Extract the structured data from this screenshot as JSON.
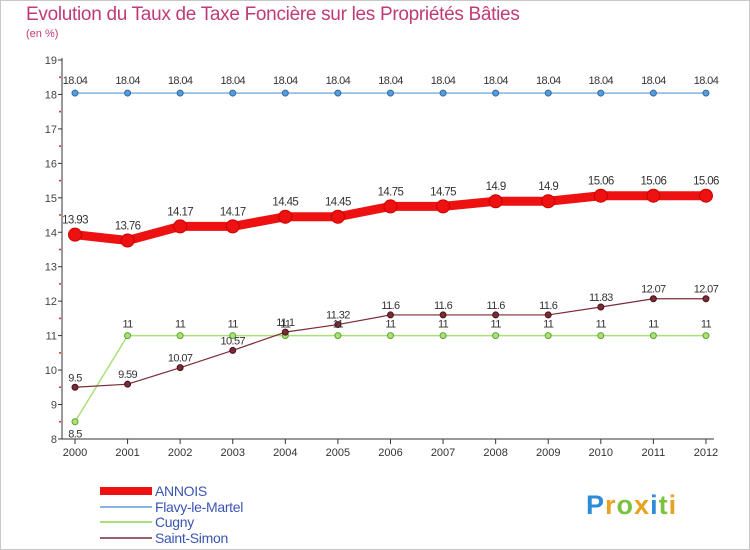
{
  "chart_data": {
    "type": "line",
    "title": "Evolution du Taux de Taxe Foncière sur les Propriétés Bâties",
    "unit_label": "(en %)",
    "x": [
      "2000",
      "2001",
      "2002",
      "2003",
      "2004",
      "2005",
      "2006",
      "2007",
      "2008",
      "2009",
      "2010",
      "2011",
      "2012"
    ],
    "ylim": [
      8,
      19
    ],
    "yticks": [
      "8",
      "9",
      "10",
      "11",
      "12",
      "13",
      "14",
      "15",
      "16",
      "17",
      "18",
      "19"
    ],
    "series": [
      {
        "name": "ANNOIS",
        "color": "#ee1111",
        "values": [
          13.93,
          13.76,
          14.17,
          14.17,
          14.45,
          14.45,
          14.75,
          14.75,
          14.9,
          14.9,
          15.06,
          15.06,
          15.06
        ],
        "labels": [
          "13.93",
          "13.76",
          "14.17",
          "14.17",
          "14.45",
          "14.45",
          "14.75",
          "14.75",
          "14.9",
          "14.9",
          "15.06",
          "15.06",
          "15.06"
        ]
      },
      {
        "name": "Flavy-le-Martel",
        "color": "#5b9bd5",
        "values": [
          18.04,
          18.04,
          18.04,
          18.04,
          18.04,
          18.04,
          18.04,
          18.04,
          18.04,
          18.04,
          18.04,
          18.04,
          18.04
        ],
        "labels": [
          "18.04",
          "18.04",
          "18.04",
          "18.04",
          "18.04",
          "18.04",
          "18.04",
          "18.04",
          "18.04",
          "18.04",
          "18.04",
          "18.04",
          "18.04"
        ]
      },
      {
        "name": "Cugny",
        "color": "#a9e07a",
        "values": [
          8.5,
          11,
          11,
          11,
          11,
          11,
          11,
          11,
          11,
          11,
          11,
          11,
          11
        ],
        "labels": [
          "8.5",
          "11",
          "11",
          "11",
          "11",
          "11",
          "11",
          "11",
          "11",
          "11",
          "11",
          "11",
          "11"
        ]
      },
      {
        "name": "Saint-Simon",
        "color": "#7a2c36",
        "values": [
          9.5,
          9.59,
          10.07,
          10.57,
          11.1,
          11.32,
          11.6,
          11.6,
          11.6,
          11.6,
          11.83,
          12.07,
          12.07
        ],
        "labels": [
          "9.5",
          "9.59",
          "10.07",
          "10.57",
          "11.1",
          "11.32",
          "11.6",
          "11.6",
          "11.6",
          "11.6",
          "11.83",
          "12.07",
          "12.07"
        ]
      }
    ]
  },
  "logo": {
    "letters": [
      "P",
      "r",
      "o",
      "x",
      "i",
      "t",
      "i"
    ],
    "colors": [
      "#2e8bd8",
      "#e8a21f",
      "#7cc242",
      "#e8a21f",
      "#2e8bd8",
      "#7cc242",
      "#e8a21f"
    ]
  }
}
